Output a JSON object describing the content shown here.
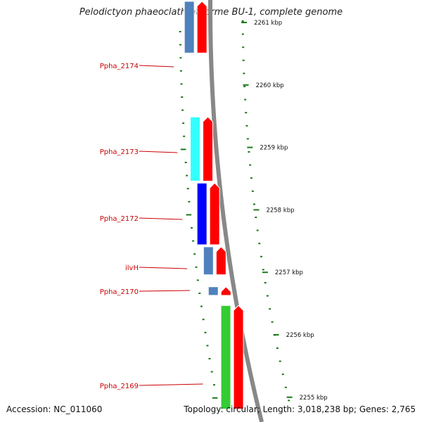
{
  "title": "Pelodictyon phaeoclathratiforme BU-1, complete genome",
  "footer": {
    "accession": "Accession: NC_011060",
    "summary": "Topology: circular; Length: 3,018,238 bp; Genes: 2,765"
  },
  "colors": {
    "gene_label": "#cc0000",
    "kbp_tick": "#1a7a1a",
    "kbp_label": "#111111",
    "backbone": "#888888",
    "forward_strand": "#ff0000",
    "reverse_strand_default": "#4f81bd"
  },
  "scale": {
    "unit": "kbp",
    "ticks": [
      {
        "label": "2261 kbp",
        "pos_kbp": 2261
      },
      {
        "label": "2260 kbp",
        "pos_kbp": 2260
      },
      {
        "label": "2259 kbp",
        "pos_kbp": 2259
      },
      {
        "label": "2258 kbp",
        "pos_kbp": 2258
      },
      {
        "label": "2257 kbp",
        "pos_kbp": 2257
      },
      {
        "label": "2256 kbp",
        "pos_kbp": 2256
      },
      {
        "label": "2255 kbp",
        "pos_kbp": 2255
      }
    ]
  },
  "genes": [
    {
      "name": "Ppha_2174",
      "start_kbp": 2260.5,
      "end_kbp": 2261.35,
      "color": "#4f81bd"
    },
    {
      "name": "Ppha_2173",
      "start_kbp": 2258.45,
      "end_kbp": 2259.5,
      "color": "#33ffff"
    },
    {
      "name": "Ppha_2172",
      "start_kbp": 2257.43,
      "end_kbp": 2258.44,
      "color": "#0000ff"
    },
    {
      "name": "ilvH",
      "start_kbp": 2256.95,
      "end_kbp": 2257.42,
      "color": "#4f81bd"
    },
    {
      "name": "Ppha_2170",
      "start_kbp": 2256.62,
      "end_kbp": 2256.78,
      "color": "#4f81bd"
    },
    {
      "name": "Ppha_2169",
      "start_kbp": 2254.8,
      "end_kbp": 2256.48,
      "color": "#33cc33"
    }
  ]
}
